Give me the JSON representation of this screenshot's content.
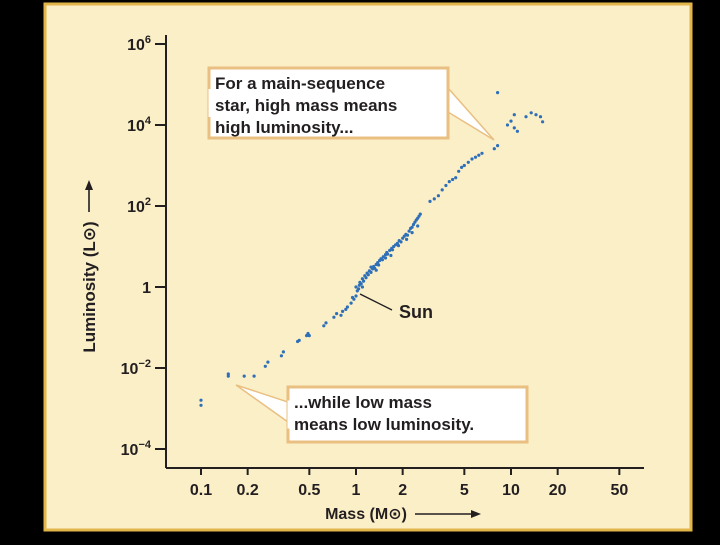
{
  "colors": {
    "background": "#000000",
    "panel": "#FBEFC8",
    "panel_border": "#E3B64A",
    "callout_fill": "#FFFFFF",
    "callout_border": "#E9BF82",
    "points": "#2E6FB8",
    "text": "#231F20"
  },
  "chart_data": {
    "type": "scatter",
    "title": "",
    "xlabel": "Mass (M⊙)",
    "ylabel": "Luminosity (L⊙)",
    "x_scale": "log",
    "y_scale": "log",
    "xlim": [
      0.08,
      65
    ],
    "ylim": [
      3e-05,
      1200000
    ],
    "x_ticks": [
      {
        "value": 0.1,
        "label": "0.1"
      },
      {
        "value": 0.2,
        "label": "0.2"
      },
      {
        "value": 0.5,
        "label": "0.5"
      },
      {
        "value": 1,
        "label": "1"
      },
      {
        "value": 2,
        "label": "2"
      },
      {
        "value": 5,
        "label": "5"
      },
      {
        "value": 10,
        "label": "10"
      },
      {
        "value": 20,
        "label": "20"
      },
      {
        "value": 50,
        "label": "50"
      }
    ],
    "y_ticks": [
      {
        "value": 1000000,
        "base": "10",
        "exp": "6"
      },
      {
        "value": 10000,
        "base": "10",
        "exp": "4"
      },
      {
        "value": 100,
        "base": "10",
        "exp": "2"
      },
      {
        "value": 1,
        "base": "1",
        "exp": ""
      },
      {
        "value": 0.01,
        "base": "10",
        "exp": "−2"
      },
      {
        "value": 0.0001,
        "base": "10",
        "exp": "−4"
      }
    ],
    "series": [
      {
        "name": "main-sequence stars",
        "points": [
          [
            0.1,
            0.0012
          ],
          [
            0.1,
            0.0016
          ],
          [
            0.15,
            0.0063
          ],
          [
            0.15,
            0.0071
          ],
          [
            0.19,
            0.0063
          ],
          [
            0.22,
            0.0063
          ],
          [
            0.26,
            0.011
          ],
          [
            0.27,
            0.014
          ],
          [
            0.33,
            0.02
          ],
          [
            0.34,
            0.025
          ],
          [
            0.42,
            0.045
          ],
          [
            0.43,
            0.048
          ],
          [
            0.48,
            0.063
          ],
          [
            0.49,
            0.071
          ],
          [
            0.5,
            0.063
          ],
          [
            0.62,
            0.11
          ],
          [
            0.64,
            0.13
          ],
          [
            0.72,
            0.18
          ],
          [
            0.75,
            0.22
          ],
          [
            0.8,
            0.2
          ],
          [
            0.82,
            0.25
          ],
          [
            0.86,
            0.28
          ],
          [
            0.88,
            0.32
          ],
          [
            0.93,
            0.4
          ],
          [
            0.95,
            0.55
          ],
          [
            0.97,
            0.5
          ],
          [
            1.0,
            0.6
          ],
          [
            1.0,
            1.0
          ],
          [
            1.02,
            0.8
          ],
          [
            1.04,
            0.9
          ],
          [
            1.05,
            1.1
          ],
          [
            1.06,
            1.3
          ],
          [
            1.08,
            1.2
          ],
          [
            1.1,
            1.0
          ],
          [
            1.1,
            1.6
          ],
          [
            1.12,
            1.4
          ],
          [
            1.14,
            1.9
          ],
          [
            1.16,
            1.7
          ],
          [
            1.18,
            2.2
          ],
          [
            1.2,
            2.0
          ],
          [
            1.22,
            2.5
          ],
          [
            1.25,
            2.3
          ],
          [
            1.28,
            2.8
          ],
          [
            1.3,
            3.2
          ],
          [
            1.32,
            2.9
          ],
          [
            1.35,
            3.6
          ],
          [
            1.38,
            4.0
          ],
          [
            1.4,
            3.5
          ],
          [
            1.42,
            4.5
          ],
          [
            1.45,
            5.0
          ],
          [
            1.48,
            4.7
          ],
          [
            1.5,
            5.6
          ],
          [
            1.55,
            6.3
          ],
          [
            1.58,
            7.1
          ],
          [
            1.6,
            6.5
          ],
          [
            1.65,
            8.0
          ],
          [
            1.7,
            9.0
          ],
          [
            1.72,
            8.3
          ],
          [
            1.75,
            10.0
          ],
          [
            1.8,
            11.0
          ],
          [
            1.85,
            12.0
          ],
          [
            1.9,
            14.0
          ],
          [
            1.95,
            13.0
          ],
          [
            2.0,
            16.0
          ],
          [
            2.05,
            18.0
          ],
          [
            2.1,
            20.0
          ],
          [
            2.15,
            19.0
          ],
          [
            2.2,
            24.0
          ],
          [
            2.25,
            28.0
          ],
          [
            2.3,
            30.0
          ],
          [
            2.35,
            35.0
          ],
          [
            2.4,
            40.0
          ],
          [
            2.45,
            45.0
          ],
          [
            2.5,
            50.0
          ],
          [
            2.55,
            56.0
          ],
          [
            2.6,
            63.0
          ],
          [
            1.25,
            3.1
          ],
          [
            1.35,
            2.6
          ],
          [
            1.55,
            5.2
          ],
          [
            1.68,
            6.0
          ],
          [
            1.88,
            10.5
          ],
          [
            2.12,
            15.0
          ],
          [
            2.3,
            22.0
          ],
          [
            2.5,
            32.0
          ],
          [
            3.0,
            130
          ],
          [
            3.2,
            150
          ],
          [
            3.4,
            180
          ],
          [
            3.6,
            250
          ],
          [
            3.8,
            320
          ],
          [
            4.0,
            400
          ],
          [
            4.2,
            450
          ],
          [
            4.4,
            500
          ],
          [
            4.6,
            720
          ],
          [
            4.8,
            900
          ],
          [
            5.0,
            1000
          ],
          [
            5.3,
            1200
          ],
          [
            5.6,
            1450
          ],
          [
            5.9,
            1600
          ],
          [
            6.2,
            1800
          ],
          [
            6.5,
            2000
          ],
          [
            7.8,
            2600
          ],
          [
            8.2,
            3100
          ],
          [
            9.5,
            10000
          ],
          [
            10.0,
            12500
          ],
          [
            10.5,
            8500
          ],
          [
            11.0,
            7000
          ],
          [
            12.5,
            16000
          ],
          [
            13.5,
            20000
          ],
          [
            14.5,
            18000
          ],
          [
            15.5,
            16000
          ],
          [
            16.0,
            12000
          ],
          [
            8.2,
            63000
          ],
          [
            10.5,
            18000
          ]
        ]
      }
    ],
    "annotations": [
      {
        "id": "high",
        "lines": [
          "For a main-sequence",
          "star, high mass means",
          "high luminosity..."
        ]
      },
      {
        "id": "low",
        "lines": [
          "...while low mass",
          "means low luminosity."
        ]
      },
      {
        "id": "sun",
        "text": "Sun",
        "x": 1.0,
        "y": 1.0
      }
    ]
  }
}
